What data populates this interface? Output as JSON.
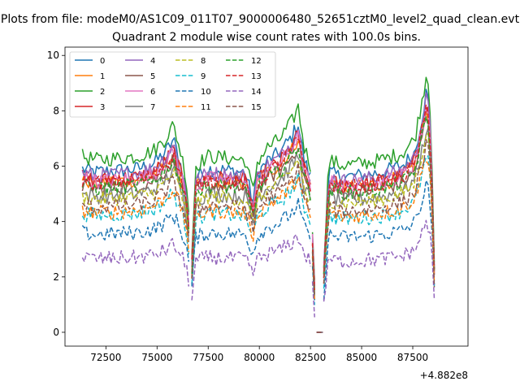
{
  "chart_data": {
    "type": "line",
    "suptitle": "Plots from file: modeM0/AS1C09_011T07_9000006480_52651cztM0_level2_quad_clean.evt",
    "title": "Quadrant 2 module wise count rates with 100.0s bins.",
    "xlabel": "",
    "ylabel": "",
    "x_offset_label": "+4.882e8",
    "xlim": [
      70500,
      90200
    ],
    "ylim": [
      -0.5,
      10.3
    ],
    "x_ticks": [
      72500,
      75000,
      77500,
      80000,
      82500,
      85000,
      87500
    ],
    "y_ticks": [
      0,
      2,
      4,
      6,
      8,
      10
    ],
    "x_tick_labels": [
      "72500",
      "75000",
      "77500",
      "80000",
      "82500",
      "85000",
      "87500"
    ],
    "y_tick_labels": [
      "0",
      "2",
      "4",
      "6",
      "8",
      "10"
    ],
    "legend_position": "upper left",
    "legend_columns": 4,
    "segments": [
      {
        "start": 71350,
        "end": 76550
      },
      {
        "start": 76700,
        "end": 82500
      },
      {
        "start": 82600,
        "end": 82750
      },
      {
        "start": 82800,
        "end": 83100
      },
      {
        "start": 83150,
        "end": 88600
      }
    ],
    "profile": {
      "x": [
        71350,
        72000,
        73000,
        74000,
        74800,
        75400,
        75800,
        76100,
        76400,
        76550,
        76700,
        76900,
        77500,
        78500,
        79300,
        79700,
        79900,
        80400,
        81000,
        81600,
        81900,
        82200,
        82500,
        82600,
        82750,
        82800,
        83100,
        83150,
        83400,
        84000,
        85000,
        86000,
        87000,
        87600,
        88000,
        88200,
        88400,
        88600
      ],
      "y": [
        1.0,
        0.98,
        0.99,
        1.0,
        1.03,
        1.1,
        1.18,
        1.05,
        0.9,
        0.7,
        0.45,
        0.95,
        1.0,
        0.99,
        0.98,
        0.8,
        0.97,
        1.05,
        1.1,
        1.2,
        1.28,
        1.05,
        0.95,
        0.6,
        0.1,
        0.0,
        0.0,
        0.4,
        0.98,
        0.95,
        0.96,
        0.98,
        1.02,
        1.1,
        1.35,
        1.5,
        1.2,
        0.15
      ]
    },
    "series": [
      {
        "name": "0",
        "color": "#1f77b4",
        "dash": "solid",
        "base": 5.9
      },
      {
        "name": "1",
        "color": "#ff7f0e",
        "dash": "solid",
        "base": 5.5
      },
      {
        "name": "2",
        "color": "#2ca02c",
        "dash": "solid",
        "base": 6.35
      },
      {
        "name": "3",
        "color": "#d62728",
        "dash": "solid",
        "base": 5.6
      },
      {
        "name": "4",
        "color": "#9467bd",
        "dash": "solid",
        "base": 5.75
      },
      {
        "name": "5",
        "color": "#8c564b",
        "dash": "solid",
        "base": 5.3
      },
      {
        "name": "6",
        "color": "#e377c2",
        "dash": "solid",
        "base": 5.55
      },
      {
        "name": "7",
        "color": "#7f7f7f",
        "dash": "solid",
        "base": 5.0
      },
      {
        "name": "8",
        "color": "#bcbd22",
        "dash": "dashed",
        "base": 4.9
      },
      {
        "name": "9",
        "color": "#17becf",
        "dash": "dashed",
        "base": 4.3
      },
      {
        "name": "10",
        "color": "#1f77b4",
        "dash": "dashed",
        "base": 3.6
      },
      {
        "name": "11",
        "color": "#ff7f0e",
        "dash": "dashed",
        "base": 4.4
      },
      {
        "name": "12",
        "color": "#2ca02c",
        "dash": "dashed",
        "base": 5.3
      },
      {
        "name": "13",
        "color": "#d62728",
        "dash": "dashed",
        "base": 5.5
      },
      {
        "name": "14",
        "color": "#9467bd",
        "dash": "dashed",
        "base": 2.7
      },
      {
        "name": "15",
        "color": "#8c564b",
        "dash": "dashed",
        "base": 4.6
      }
    ]
  }
}
